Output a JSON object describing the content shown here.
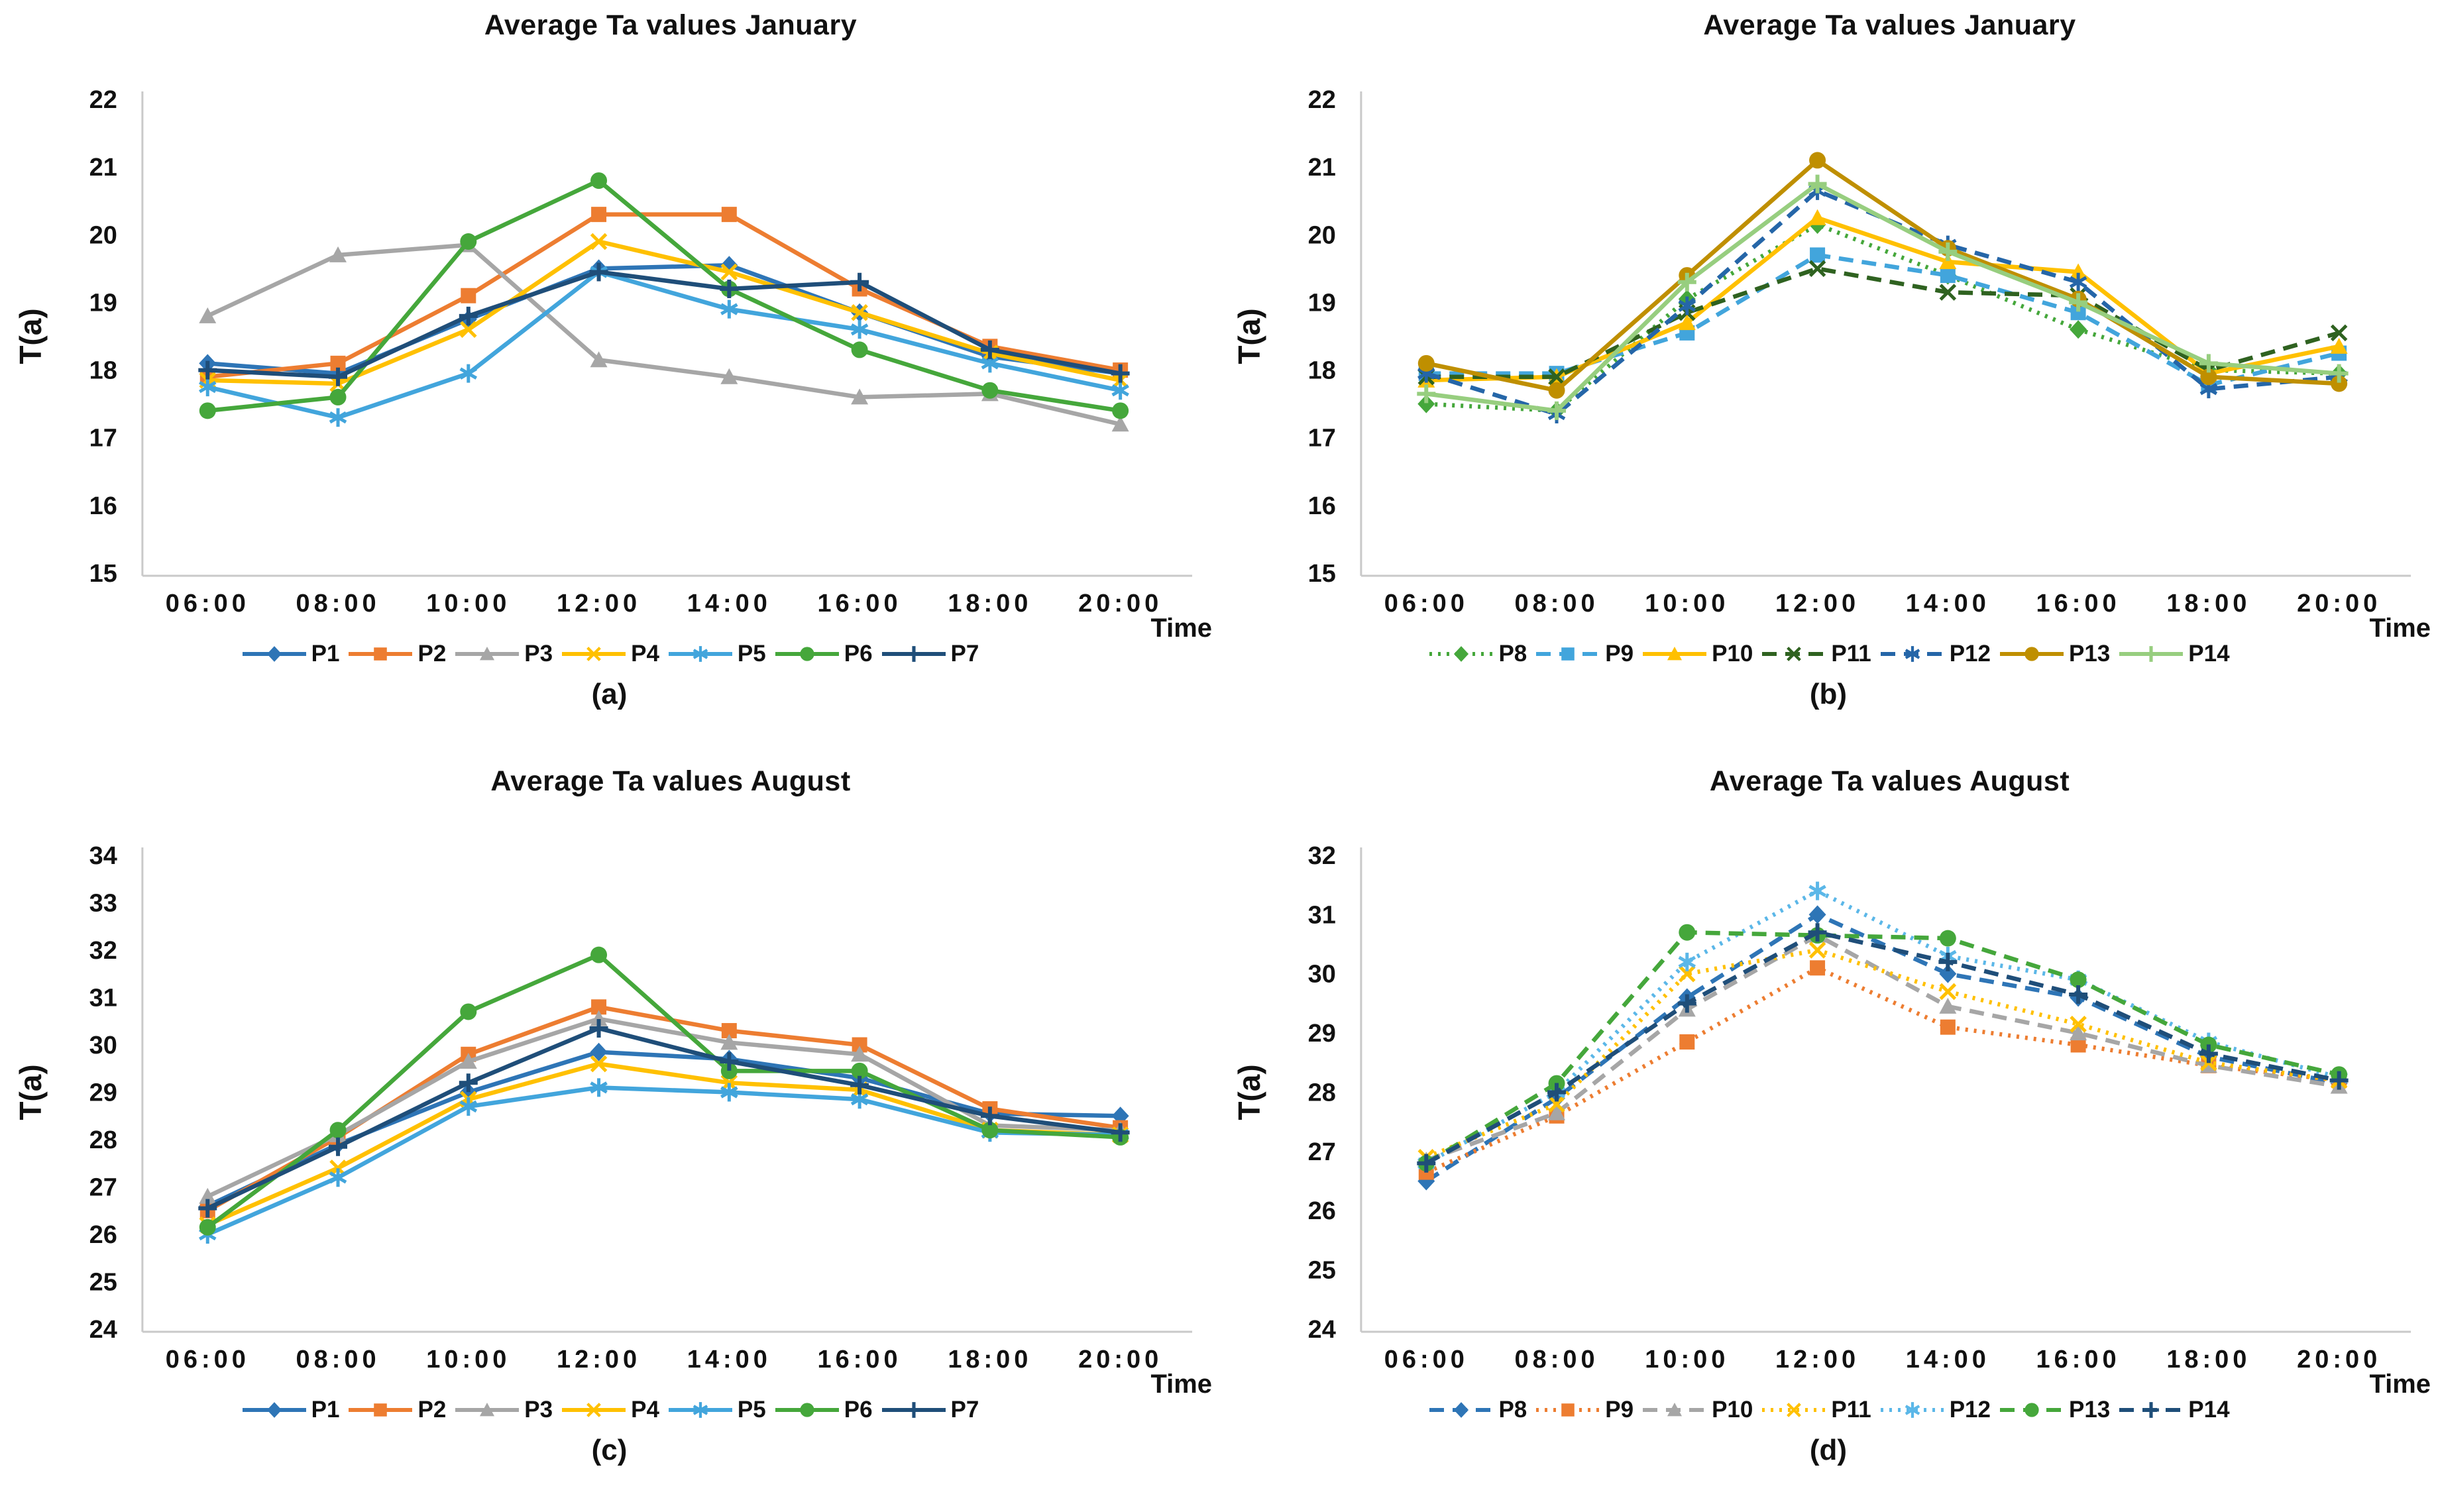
{
  "chart_data": [
    {
      "id": "a",
      "type": "line",
      "title": "Average Ta values January",
      "caption": "(a)",
      "xlabel": "Time",
      "ylabel": "T(a)",
      "ylim": [
        15,
        22
      ],
      "ytick_step": 1,
      "grid": false,
      "legend_position": "bottom",
      "categories": [
        "06:00",
        "08:00",
        "10:00",
        "12:00",
        "14:00",
        "16:00",
        "18:00",
        "20:00"
      ],
      "series": [
        {
          "name": "P1",
          "color": "#2E75B6",
          "marker": "diamond",
          "dash": "solid",
          "values": [
            18.1,
            17.95,
            18.75,
            19.5,
            19.55,
            18.85,
            18.2,
            17.95
          ]
        },
        {
          "name": "P2",
          "color": "#ED7D31",
          "marker": "square",
          "dash": "solid",
          "values": [
            17.9,
            18.1,
            19.1,
            20.3,
            20.3,
            19.2,
            18.35,
            18.0
          ]
        },
        {
          "name": "P3",
          "color": "#A6A6A6",
          "marker": "triangle",
          "dash": "solid",
          "values": [
            18.8,
            19.7,
            19.85,
            18.15,
            17.9,
            17.6,
            17.65,
            17.2
          ]
        },
        {
          "name": "P4",
          "color": "#FFC000",
          "marker": "x",
          "dash": "solid",
          "values": [
            17.85,
            17.8,
            18.6,
            19.9,
            19.45,
            18.85,
            18.25,
            17.85
          ]
        },
        {
          "name": "P5",
          "color": "#42A5DC",
          "marker": "asterisk",
          "dash": "solid",
          "values": [
            17.75,
            17.3,
            17.95,
            19.45,
            18.9,
            18.6,
            18.1,
            17.7
          ]
        },
        {
          "name": "P6",
          "color": "#45A73B",
          "marker": "circle",
          "dash": "solid",
          "values": [
            17.4,
            17.6,
            19.9,
            20.8,
            19.2,
            18.3,
            17.7,
            17.4
          ]
        },
        {
          "name": "P7",
          "color": "#1F4E79",
          "marker": "plus",
          "dash": "solid",
          "values": [
            18.0,
            17.9,
            18.8,
            19.45,
            19.2,
            19.3,
            18.3,
            17.95
          ]
        }
      ]
    },
    {
      "id": "b",
      "type": "line",
      "title": "Average Ta values January",
      "caption": "(b)",
      "xlabel": "Time",
      "ylabel": "T(a)",
      "ylim": [
        15,
        22
      ],
      "ytick_step": 1,
      "grid": false,
      "legend_position": "bottom",
      "categories": [
        "06:00",
        "08:00",
        "10:00",
        "12:00",
        "14:00",
        "16:00",
        "18:00",
        "20:00"
      ],
      "series": [
        {
          "name": "P8",
          "color": "#45A73B",
          "marker": "diamond",
          "dash": "dotted",
          "values": [
            17.5,
            17.4,
            19.05,
            20.15,
            19.4,
            18.6,
            18.0,
            17.95
          ]
        },
        {
          "name": "P9",
          "color": "#42A5DC",
          "marker": "square",
          "dash": "dashed",
          "values": [
            17.95,
            17.95,
            18.55,
            19.7,
            19.4,
            18.85,
            17.78,
            18.25
          ]
        },
        {
          "name": "P10",
          "color": "#FFC000",
          "marker": "triangle",
          "dash": "solid",
          "values": [
            17.85,
            17.9,
            18.7,
            20.25,
            19.6,
            19.45,
            17.95,
            18.35
          ]
        },
        {
          "name": "P11",
          "color": "#2F6220",
          "marker": "x",
          "dash": "dashed",
          "values": [
            17.9,
            17.9,
            18.85,
            19.5,
            19.15,
            19.1,
            18.0,
            18.55
          ]
        },
        {
          "name": "P12",
          "color": "#2566A8",
          "marker": "asterisk",
          "dash": "dashed",
          "values": [
            17.95,
            17.35,
            18.95,
            20.65,
            19.85,
            19.3,
            17.72,
            17.9
          ]
        },
        {
          "name": "P13",
          "color": "#BF8F00",
          "marker": "circle",
          "dash": "solid",
          "values": [
            18.1,
            17.7,
            19.4,
            21.1,
            19.8,
            19.05,
            17.9,
            17.8
          ]
        },
        {
          "name": "P14",
          "color": "#97CE7F",
          "marker": "plus",
          "dash": "solid",
          "values": [
            17.65,
            17.4,
            19.3,
            20.75,
            19.75,
            19.0,
            18.1,
            17.95
          ]
        }
      ]
    },
    {
      "id": "c",
      "type": "line",
      "title": "Average Ta values August",
      "caption": "(c)",
      "xlabel": "Time",
      "ylabel": "T(a)",
      "ylim": [
        24,
        34
      ],
      "ytick_step": 1,
      "grid": false,
      "legend_position": "bottom",
      "categories": [
        "06:00",
        "08:00",
        "10:00",
        "12:00",
        "14:00",
        "16:00",
        "18:00",
        "20:00"
      ],
      "series": [
        {
          "name": "P1",
          "color": "#2E75B6",
          "marker": "diamond",
          "dash": "solid",
          "values": [
            26.6,
            27.9,
            29.0,
            29.85,
            29.7,
            29.3,
            28.55,
            28.5
          ]
        },
        {
          "name": "P2",
          "color": "#ED7D31",
          "marker": "square",
          "dash": "solid",
          "values": [
            26.5,
            28.05,
            29.8,
            30.8,
            30.3,
            30.0,
            28.65,
            28.25
          ]
        },
        {
          "name": "P3",
          "color": "#A6A6A6",
          "marker": "triangle",
          "dash": "solid",
          "values": [
            26.8,
            28.1,
            29.65,
            30.55,
            30.05,
            29.8,
            28.3,
            28.2
          ]
        },
        {
          "name": "P4",
          "color": "#FFC000",
          "marker": "x",
          "dash": "solid",
          "values": [
            26.2,
            27.4,
            28.85,
            29.6,
            29.2,
            29.05,
            28.2,
            28.1
          ]
        },
        {
          "name": "P5",
          "color": "#42A5DC",
          "marker": "asterisk",
          "dash": "solid",
          "values": [
            26.0,
            27.2,
            28.7,
            29.1,
            29.0,
            28.85,
            28.15,
            28.1
          ]
        },
        {
          "name": "P6",
          "color": "#45A73B",
          "marker": "circle",
          "dash": "solid",
          "values": [
            26.15,
            28.2,
            30.7,
            31.9,
            29.45,
            29.45,
            28.2,
            28.05
          ]
        },
        {
          "name": "P7",
          "color": "#1F4E79",
          "marker": "plus",
          "dash": "solid",
          "values": [
            26.55,
            27.85,
            29.2,
            30.35,
            29.65,
            29.15,
            28.5,
            28.15
          ]
        }
      ]
    },
    {
      "id": "d",
      "type": "line",
      "title": "Average Ta values August",
      "caption": "(d)",
      "xlabel": "Time",
      "ylabel": "T(a)",
      "ylim": [
        24,
        32
      ],
      "ytick_step": 1,
      "grid": false,
      "legend_position": "bottom",
      "categories": [
        "06:00",
        "08:00",
        "10:00",
        "12:00",
        "14:00",
        "16:00",
        "18:00",
        "20:00"
      ],
      "series": [
        {
          "name": "P8",
          "color": "#2E75B6",
          "marker": "diamond",
          "dash": "dashed",
          "values": [
            26.5,
            27.9,
            29.6,
            31.0,
            30.0,
            29.6,
            28.6,
            28.15
          ]
        },
        {
          "name": "P9",
          "color": "#ED7D31",
          "marker": "square",
          "dash": "dotted",
          "values": [
            26.65,
            27.6,
            28.85,
            30.1,
            29.1,
            28.8,
            28.45,
            28.2
          ]
        },
        {
          "name": "P10",
          "color": "#A6A6A6",
          "marker": "triangle",
          "dash": "dashed",
          "values": [
            26.85,
            27.65,
            29.4,
            30.65,
            29.45,
            29.0,
            28.45,
            28.1
          ]
        },
        {
          "name": "P11",
          "color": "#FFC000",
          "marker": "x",
          "dash": "dotted",
          "values": [
            26.9,
            27.8,
            30.0,
            30.4,
            29.7,
            29.15,
            28.5,
            28.2
          ]
        },
        {
          "name": "P12",
          "color": "#5BB7E8",
          "marker": "asterisk",
          "dash": "dotted",
          "values": [
            26.8,
            28.0,
            30.2,
            31.4,
            30.3,
            29.9,
            28.85,
            28.25
          ]
        },
        {
          "name": "P13",
          "color": "#45A73B",
          "marker": "circle",
          "dash": "dashed",
          "values": [
            26.8,
            28.15,
            30.7,
            30.65,
            30.6,
            29.9,
            28.8,
            28.3
          ]
        },
        {
          "name": "P14",
          "color": "#1F4E79",
          "marker": "plus",
          "dash": "dashed",
          "values": [
            26.8,
            28.0,
            29.5,
            30.7,
            30.2,
            29.65,
            28.65,
            28.2
          ]
        }
      ]
    }
  ]
}
